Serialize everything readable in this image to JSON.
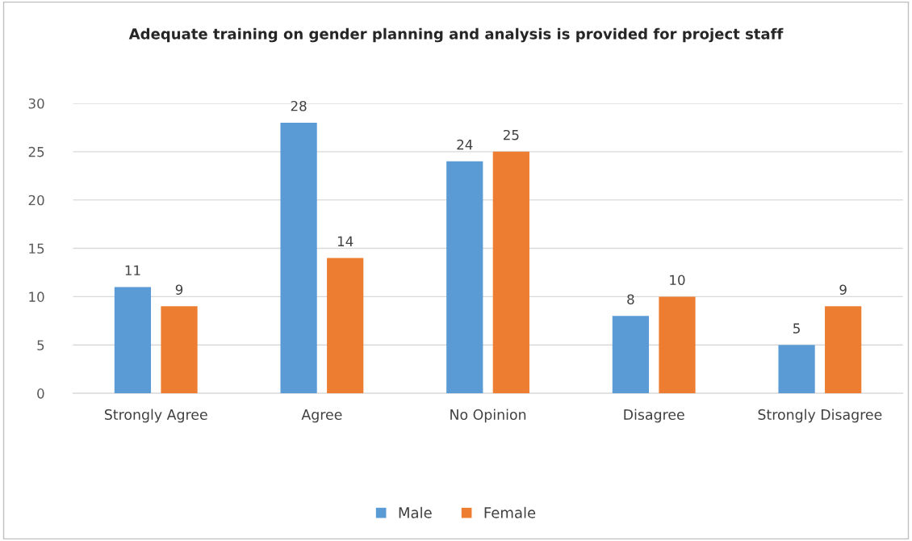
{
  "chart_data": {
    "type": "bar",
    "title": "Adequate training on gender planning and analysis is provided for project staff",
    "categories": [
      "Strongly Agree",
      "Agree",
      "No Opinion",
      "Disagree",
      "Strongly Disagree"
    ],
    "series": [
      {
        "name": "Male",
        "color": "#5b9bd5",
        "values": [
          11,
          28,
          24,
          8,
          5
        ]
      },
      {
        "name": "Female",
        "color": "#ed7d31",
        "values": [
          9,
          14,
          25,
          10,
          9
        ]
      }
    ],
    "ylim": [
      0,
      30
    ],
    "yticks": [
      0,
      5,
      10,
      15,
      20,
      25,
      30
    ],
    "grid": "y",
    "legend": "bottom",
    "data_labels": true
  }
}
